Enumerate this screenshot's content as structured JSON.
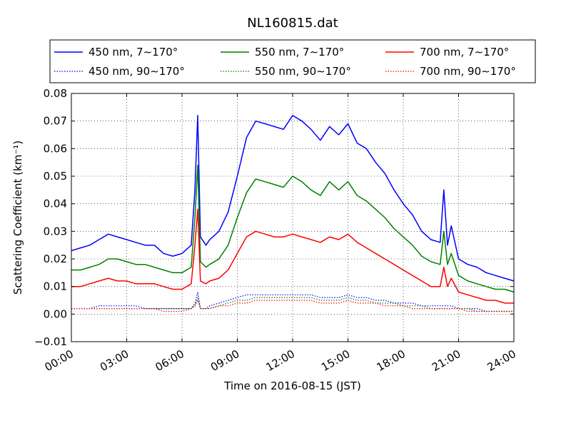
{
  "chart_data": {
    "type": "line",
    "title": "NL160815.dat",
    "xlabel": "Time on 2016-08-15 (JST)",
    "ylabel": "Scattering Coefficient (km⁻¹)",
    "xlim": [
      0,
      24
    ],
    "ylim": [
      -0.01,
      0.08
    ],
    "x_tick_labels": [
      "00:00",
      "03:00",
      "06:00",
      "09:00",
      "12:00",
      "15:00",
      "18:00",
      "21:00",
      "24:00"
    ],
    "y_tick_labels": [
      "−0.01",
      "0.00",
      "0.01",
      "0.02",
      "0.03",
      "0.04",
      "0.05",
      "0.06",
      "0.07",
      "0.08"
    ],
    "grid": true,
    "legend_position": "top (above plot)",
    "x_hours": [
      0,
      0.5,
      1,
      1.5,
      2,
      2.5,
      3,
      3.5,
      4,
      4.5,
      5,
      5.5,
      6,
      6.5,
      6.7,
      6.85,
      7,
      7.3,
      7.5,
      8,
      8.5,
      9,
      9.5,
      10,
      10.5,
      11,
      11.5,
      12,
      12.5,
      13,
      13.5,
      14,
      14.5,
      15,
      15.5,
      16,
      16.5,
      17,
      17.5,
      18,
      18.5,
      19,
      19.5,
      20,
      20.2,
      20.4,
      20.6,
      21,
      21.5,
      22,
      22.5,
      23,
      23.5,
      24
    ],
    "series": [
      {
        "name": "450 nm, 7∼170°",
        "color": "#0000ff",
        "style": "solid",
        "values": [
          0.023,
          0.024,
          0.025,
          0.027,
          0.029,
          0.028,
          0.027,
          0.026,
          0.025,
          0.025,
          0.022,
          0.021,
          0.022,
          0.025,
          0.045,
          0.072,
          0.028,
          0.025,
          0.027,
          0.03,
          0.037,
          0.05,
          0.064,
          0.07,
          0.069,
          0.068,
          0.067,
          0.072,
          0.07,
          0.067,
          0.063,
          0.068,
          0.065,
          0.069,
          0.062,
          0.06,
          0.055,
          0.051,
          0.045,
          0.04,
          0.036,
          0.03,
          0.027,
          0.026,
          0.045,
          0.025,
          0.032,
          0.02,
          0.018,
          0.017,
          0.015,
          0.014,
          0.013,
          0.012
        ]
      },
      {
        "name": "450 nm, 90∼170°",
        "color": "#0000ff",
        "style": "dotted",
        "values": [
          0.002,
          0.002,
          0.002,
          0.003,
          0.003,
          0.003,
          0.003,
          0.003,
          0.002,
          0.002,
          0.002,
          0.002,
          0.002,
          0.002,
          0.004,
          0.008,
          0.002,
          0.002,
          0.003,
          0.004,
          0.005,
          0.006,
          0.007,
          0.007,
          0.007,
          0.007,
          0.007,
          0.007,
          0.007,
          0.007,
          0.006,
          0.006,
          0.006,
          0.007,
          0.006,
          0.006,
          0.005,
          0.005,
          0.004,
          0.004,
          0.004,
          0.003,
          0.003,
          0.003,
          0.003,
          0.003,
          0.003,
          0.002,
          0.002,
          0.002,
          0.001,
          0.001,
          0.001,
          0.001
        ]
      },
      {
        "name": "550 nm, 7∼170°",
        "color": "#008000",
        "style": "solid",
        "values": [
          0.016,
          0.016,
          0.017,
          0.018,
          0.02,
          0.02,
          0.019,
          0.018,
          0.018,
          0.017,
          0.016,
          0.015,
          0.015,
          0.017,
          0.035,
          0.054,
          0.019,
          0.017,
          0.018,
          0.02,
          0.025,
          0.035,
          0.044,
          0.049,
          0.048,
          0.047,
          0.046,
          0.05,
          0.048,
          0.045,
          0.043,
          0.048,
          0.045,
          0.048,
          0.043,
          0.041,
          0.038,
          0.035,
          0.031,
          0.028,
          0.025,
          0.021,
          0.019,
          0.018,
          0.03,
          0.018,
          0.022,
          0.014,
          0.012,
          0.011,
          0.01,
          0.009,
          0.009,
          0.008
        ]
      },
      {
        "name": "550 nm, 90∼170°",
        "color": "#008000",
        "style": "dotted",
        "values": [
          0.002,
          0.002,
          0.002,
          0.002,
          0.002,
          0.002,
          0.002,
          0.002,
          0.002,
          0.002,
          0.002,
          0.002,
          0.002,
          0.002,
          0.003,
          0.006,
          0.002,
          0.002,
          0.002,
          0.003,
          0.004,
          0.005,
          0.005,
          0.006,
          0.006,
          0.006,
          0.006,
          0.006,
          0.006,
          0.006,
          0.005,
          0.005,
          0.005,
          0.006,
          0.005,
          0.005,
          0.004,
          0.004,
          0.004,
          0.003,
          0.003,
          0.003,
          0.002,
          0.002,
          0.002,
          0.002,
          0.002,
          0.002,
          0.002,
          0.001,
          0.001,
          0.001,
          0.001,
          0.001
        ]
      },
      {
        "name": "700 nm, 7∼170°",
        "color": "#ff0000",
        "style": "solid",
        "values": [
          0.01,
          0.01,
          0.011,
          0.012,
          0.013,
          0.012,
          0.012,
          0.011,
          0.011,
          0.011,
          0.01,
          0.009,
          0.009,
          0.011,
          0.025,
          0.038,
          0.012,
          0.011,
          0.012,
          0.013,
          0.016,
          0.022,
          0.028,
          0.03,
          0.029,
          0.028,
          0.028,
          0.029,
          0.028,
          0.027,
          0.026,
          0.028,
          0.027,
          0.029,
          0.026,
          0.024,
          0.022,
          0.02,
          0.018,
          0.016,
          0.014,
          0.012,
          0.01,
          0.01,
          0.017,
          0.01,
          0.013,
          0.008,
          0.007,
          0.006,
          0.005,
          0.005,
          0.004,
          0.004
        ]
      },
      {
        "name": "700 nm, 90∼170°",
        "color": "#ff0000",
        "style": "dotted",
        "values": [
          0.002,
          0.002,
          0.002,
          0.002,
          0.002,
          0.002,
          0.002,
          0.002,
          0.002,
          0.002,
          0.001,
          0.001,
          0.001,
          0.002,
          0.003,
          0.005,
          0.002,
          0.002,
          0.002,
          0.003,
          0.003,
          0.004,
          0.004,
          0.005,
          0.005,
          0.005,
          0.005,
          0.005,
          0.005,
          0.005,
          0.004,
          0.004,
          0.004,
          0.005,
          0.004,
          0.004,
          0.004,
          0.003,
          0.003,
          0.003,
          0.002,
          0.002,
          0.002,
          0.002,
          0.002,
          0.002,
          0.002,
          0.002,
          0.001,
          0.001,
          0.001,
          0.001,
          0.001,
          0.001
        ]
      }
    ]
  }
}
